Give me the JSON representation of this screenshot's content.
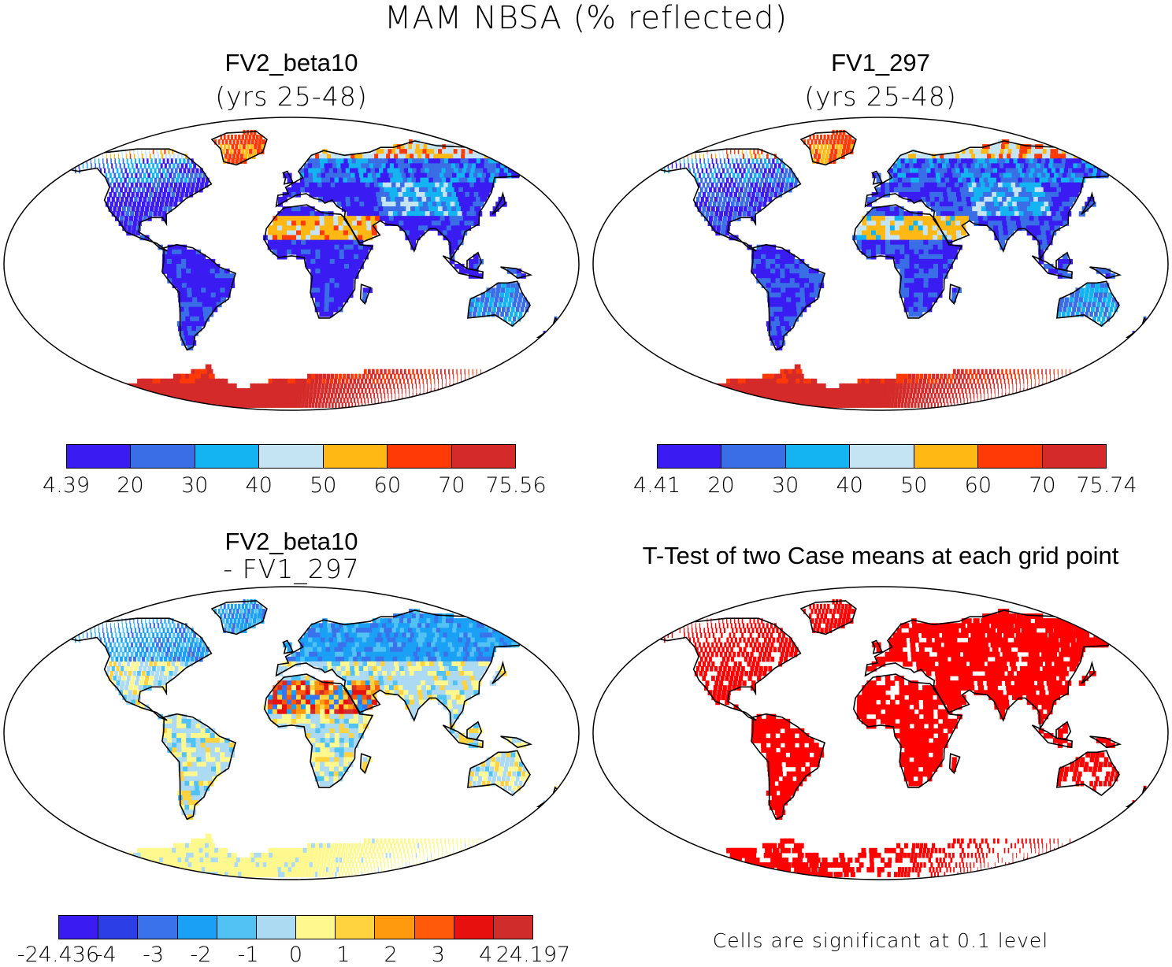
{
  "figure_title": "MAM NBSA (% reflected)",
  "colors": {
    "albedo": [
      "#3a1cf2",
      "#3a6ee6",
      "#14b4f2",
      "#c4e4f4",
      "#ffb814",
      "#ff3a06",
      "#d52a2a"
    ],
    "diff": [
      "#3a1cf2",
      "#2c3ee6",
      "#3a72ec",
      "#1aa0f4",
      "#52c2f4",
      "#acdaf2",
      "#fff88e",
      "#ffd240",
      "#ff9a0e",
      "#ff5a0a",
      "#e80f0f",
      "#d02c2c"
    ],
    "significant": "#ff0000"
  },
  "panels": [
    {
      "id": "fv2",
      "title": "FV2_beta10",
      "subtitle": "(yrs 25-48)",
      "colorbar": {
        "ticks": [
          "4.39",
          "20",
          "30",
          "40",
          "50",
          "60",
          "70",
          "75.56"
        ]
      }
    },
    {
      "id": "fv1",
      "title": "FV1_297",
      "subtitle": "(yrs 25-48)",
      "colorbar": {
        "ticks": [
          "4.41",
          "20",
          "30",
          "40",
          "50",
          "60",
          "70",
          "75.74"
        ]
      }
    },
    {
      "id": "diff",
      "title": "FV2_beta10",
      "subtitle": "- FV1_297",
      "colorbar": {
        "ticks": [
          "-24.436",
          "-4",
          "-3",
          "-2",
          "-1",
          "0",
          "1",
          "2",
          "3",
          "4",
          "24.197"
        ]
      }
    },
    {
      "id": "ttest",
      "title": "T-Test of two Case means at each grid point",
      "note": "Cells are significant at 0.1 level"
    }
  ]
}
